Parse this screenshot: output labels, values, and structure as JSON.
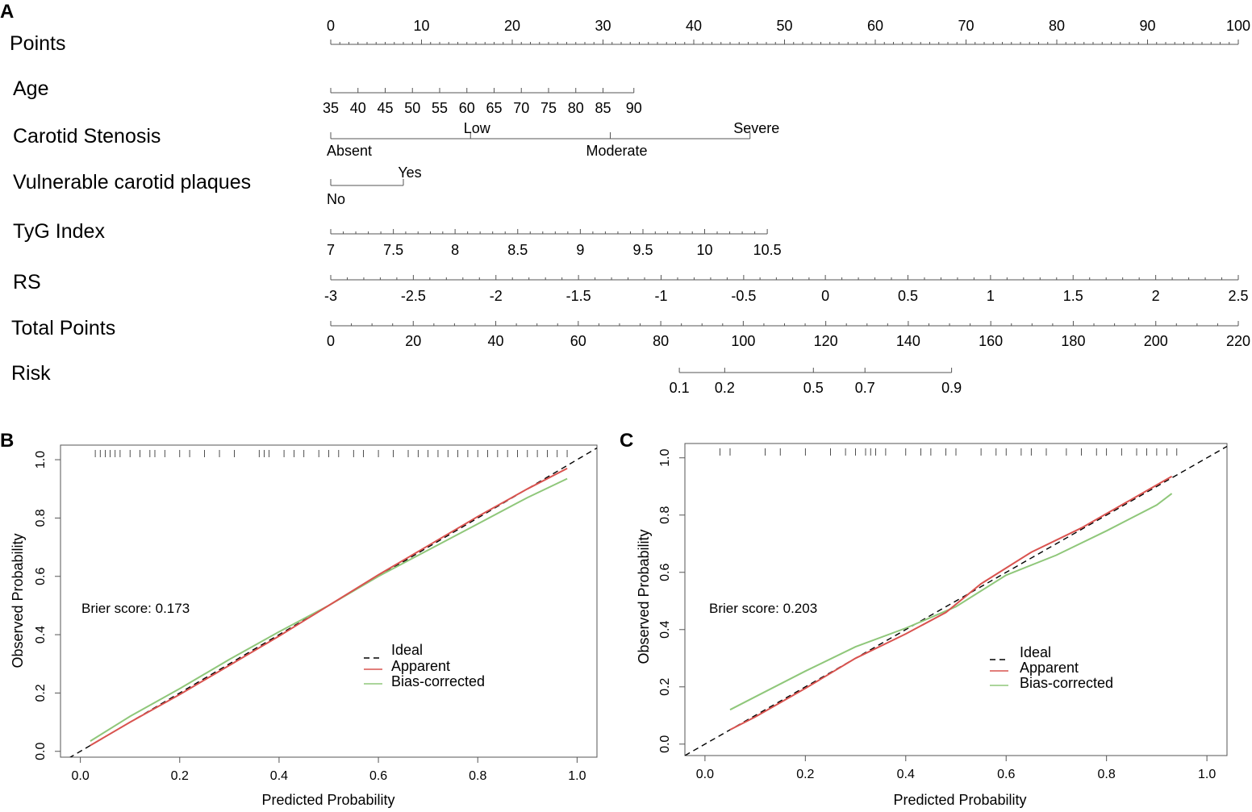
{
  "figure": {
    "panel_labels": [
      "A",
      "B",
      "C"
    ]
  },
  "nomogram": {
    "type": "nomogram",
    "points_axis": {
      "label": "Points",
      "ticks": [
        "0",
        "10",
        "20",
        "30",
        "40",
        "50",
        "60",
        "70",
        "80",
        "90",
        "100"
      ]
    },
    "variables": [
      {
        "label": "Age",
        "ticks": [
          {
            "value": "35",
            "points": 0
          },
          {
            "value": "40",
            "points": 3
          },
          {
            "value": "45",
            "points": 6
          },
          {
            "value": "50",
            "points": 9
          },
          {
            "value": "55",
            "points": 12
          },
          {
            "value": "60",
            "points": 15
          },
          {
            "value": "65",
            "points": 18
          },
          {
            "value": "70",
            "points": 21
          },
          {
            "value": "75",
            "points": 24
          },
          {
            "value": "80",
            "points": 27
          },
          {
            "value": "85",
            "points": 30
          },
          {
            "value": "90",
            "points": 33.4
          }
        ]
      },
      {
        "label": "Carotid Stenosis",
        "ticks": [
          {
            "value": "Absent",
            "points": 0,
            "side": "below"
          },
          {
            "value": "Low",
            "points": 15.4,
            "side": "above"
          },
          {
            "value": "Moderate",
            "points": 30.8,
            "side": "below"
          },
          {
            "value": "Severe",
            "points": 46.2,
            "side": "above"
          }
        ]
      },
      {
        "label": "Vulnerable carotid plaques",
        "ticks": [
          {
            "value": "No",
            "points": 0,
            "side": "below"
          },
          {
            "value": "Yes",
            "points": 8,
            "side": "above"
          }
        ]
      },
      {
        "label": "TyG Index",
        "ticks": [
          {
            "value": "7",
            "points": 0
          },
          {
            "value": "7.5",
            "points": 6.9
          },
          {
            "value": "8",
            "points": 13.7
          },
          {
            "value": "8.5",
            "points": 20.6
          },
          {
            "value": "9",
            "points": 27.5
          },
          {
            "value": "9.5",
            "points": 34.4
          },
          {
            "value": "10",
            "points": 41.2
          },
          {
            "value": "10.5",
            "points": 48.1
          }
        ]
      },
      {
        "label": "RS",
        "ticks": [
          {
            "value": "-3",
            "points": 0
          },
          {
            "value": "-2.5",
            "points": 9.1
          },
          {
            "value": "-2",
            "points": 18.2
          },
          {
            "value": "-1.5",
            "points": 27.3
          },
          {
            "value": "-1",
            "points": 36.4
          },
          {
            "value": "-0.5",
            "points": 45.5
          },
          {
            "value": "0",
            "points": 54.5
          },
          {
            "value": "0.5",
            "points": 63.6
          },
          {
            "value": "1",
            "points": 72.7
          },
          {
            "value": "1.5",
            "points": 81.8
          },
          {
            "value": "2",
            "points": 90.9
          },
          {
            "value": "2.5",
            "points": 100
          }
        ]
      }
    ],
    "total_points_axis": {
      "label": "Total Points",
      "ticks": [
        "0",
        "20",
        "40",
        "60",
        "80",
        "100",
        "120",
        "140",
        "160",
        "180",
        "200",
        "220"
      ],
      "max": 220
    },
    "risk_axis": {
      "label": "Risk",
      "ticks": [
        {
          "value": "0.1",
          "total_points": 84.5
        },
        {
          "value": "0.2",
          "total_points": 95.5
        },
        {
          "value": "0.5",
          "total_points": 117
        },
        {
          "value": "0.7",
          "total_points": 129.5
        },
        {
          "value": "0.9",
          "total_points": 150.5
        }
      ]
    }
  },
  "chart_data": [
    {
      "type": "line",
      "panel": "B",
      "xlabel": "Predicted Probability",
      "ylabel": "Observed Probability",
      "xlim": [
        -0.04,
        1.04
      ],
      "ylim": [
        -0.02,
        1.05
      ],
      "xticks": [
        "0.0",
        "0.2",
        "0.4",
        "0.6",
        "0.8",
        "1.0"
      ],
      "yticks": [
        "0.0",
        "0.2",
        "0.4",
        "0.6",
        "0.8",
        "1.0"
      ],
      "annotation": "Brier score: 0.173",
      "legend": [
        "Ideal",
        "Apparent",
        "Bias-corrected"
      ],
      "series": [
        {
          "name": "Ideal",
          "x": [
            -0.04,
            1.04
          ],
          "y": [
            -0.04,
            1.04
          ]
        },
        {
          "name": "Apparent",
          "x": [
            0.02,
            0.1,
            0.2,
            0.3,
            0.4,
            0.5,
            0.6,
            0.7,
            0.8,
            0.9,
            0.98
          ],
          "y": [
            0.02,
            0.1,
            0.195,
            0.295,
            0.395,
            0.5,
            0.605,
            0.705,
            0.805,
            0.9,
            0.97
          ]
        },
        {
          "name": "Bias-corrected",
          "x": [
            0.02,
            0.1,
            0.2,
            0.3,
            0.4,
            0.5,
            0.6,
            0.7,
            0.8,
            0.9,
            0.98
          ],
          "y": [
            0.035,
            0.12,
            0.215,
            0.315,
            0.41,
            0.5,
            0.6,
            0.69,
            0.78,
            0.87,
            0.935
          ]
        }
      ],
      "rug": [
        0.03,
        0.04,
        0.05,
        0.06,
        0.07,
        0.08,
        0.1,
        0.12,
        0.14,
        0.15,
        0.17,
        0.2,
        0.22,
        0.25,
        0.28,
        0.31,
        0.36,
        0.37,
        0.38,
        0.41,
        0.43,
        0.45,
        0.48,
        0.5,
        0.52,
        0.55,
        0.57,
        0.6,
        0.63,
        0.66,
        0.68,
        0.7,
        0.72,
        0.74,
        0.76,
        0.78,
        0.8,
        0.82,
        0.84,
        0.86,
        0.88,
        0.9,
        0.92,
        0.94,
        0.96,
        0.98
      ]
    },
    {
      "type": "line",
      "panel": "C",
      "xlabel": "Predicted Probability",
      "ylabel": "Observed Probability",
      "xlim": [
        -0.04,
        1.04
      ],
      "ylim": [
        -0.04,
        1.05
      ],
      "xticks": [
        "0.0",
        "0.2",
        "0.4",
        "0.6",
        "0.8",
        "1.0"
      ],
      "yticks": [
        "0.0",
        "0.2",
        "0.4",
        "0.6",
        "0.8",
        "1.0"
      ],
      "annotation": "Brier score: 0.203",
      "legend": [
        "Ideal",
        "Apparent",
        "Bias-corrected"
      ],
      "series": [
        {
          "name": "Ideal",
          "x": [
            -0.04,
            1.04
          ],
          "y": [
            -0.04,
            1.04
          ]
        },
        {
          "name": "Apparent",
          "x": [
            0.05,
            0.1,
            0.2,
            0.3,
            0.4,
            0.48,
            0.55,
            0.65,
            0.75,
            0.85,
            0.93
          ],
          "y": [
            0.05,
            0.095,
            0.195,
            0.3,
            0.385,
            0.46,
            0.56,
            0.67,
            0.755,
            0.855,
            0.935
          ]
        },
        {
          "name": "Bias-corrected",
          "x": [
            0.05,
            0.1,
            0.2,
            0.3,
            0.4,
            0.5,
            0.6,
            0.7,
            0.8,
            0.9,
            0.93
          ],
          "y": [
            0.12,
            0.165,
            0.255,
            0.34,
            0.405,
            0.48,
            0.59,
            0.66,
            0.745,
            0.835,
            0.875
          ]
        }
      ],
      "rug": [
        0.03,
        0.05,
        0.12,
        0.15,
        0.2,
        0.25,
        0.28,
        0.3,
        0.32,
        0.33,
        0.34,
        0.36,
        0.4,
        0.43,
        0.45,
        0.48,
        0.5,
        0.55,
        0.58,
        0.6,
        0.63,
        0.65,
        0.68,
        0.72,
        0.75,
        0.78,
        0.8,
        0.83,
        0.86,
        0.88,
        0.9,
        0.92,
        0.94
      ]
    }
  ],
  "colors": {
    "axis": "#555555",
    "ideal": "#000000",
    "apparent": "#d9534f",
    "bias_corrected": "#8fc77a"
  }
}
